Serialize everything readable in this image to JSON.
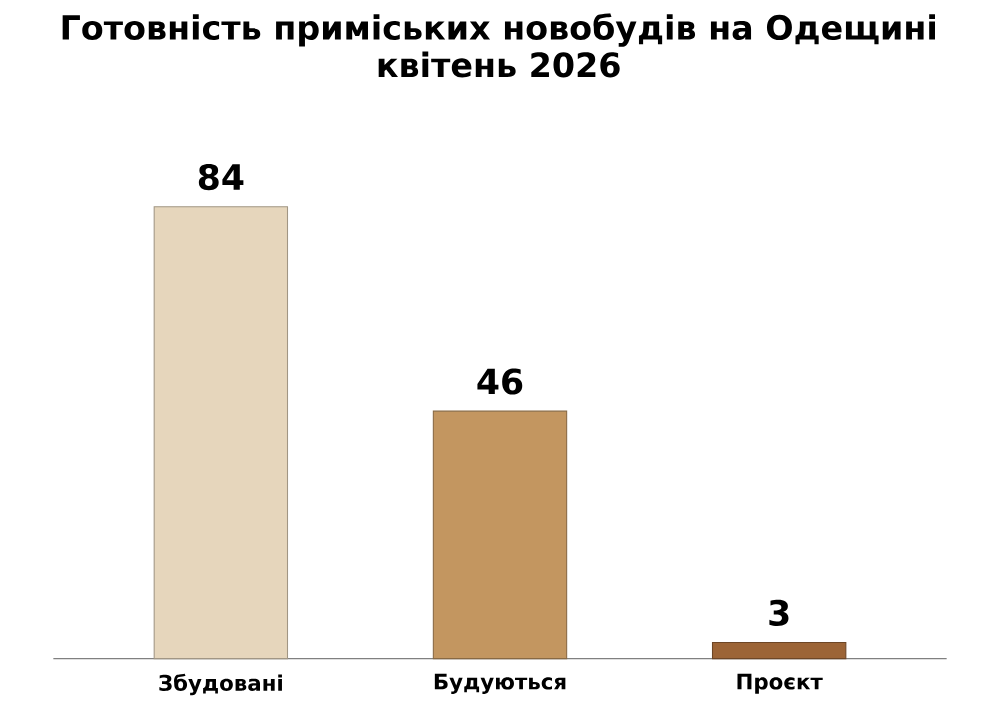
{
  "chart_data": {
    "type": "bar",
    "title": "Готовність приміських новобудів на Одещині",
    "subtitle": "квітень 2026",
    "categories": [
      "Збудовані",
      "Будуються",
      "Проєкт"
    ],
    "values": [
      84,
      46,
      3
    ],
    "colors": [
      "#e6d6bc",
      "#c39660",
      "#9c6436"
    ],
    "data_labels": true
  }
}
